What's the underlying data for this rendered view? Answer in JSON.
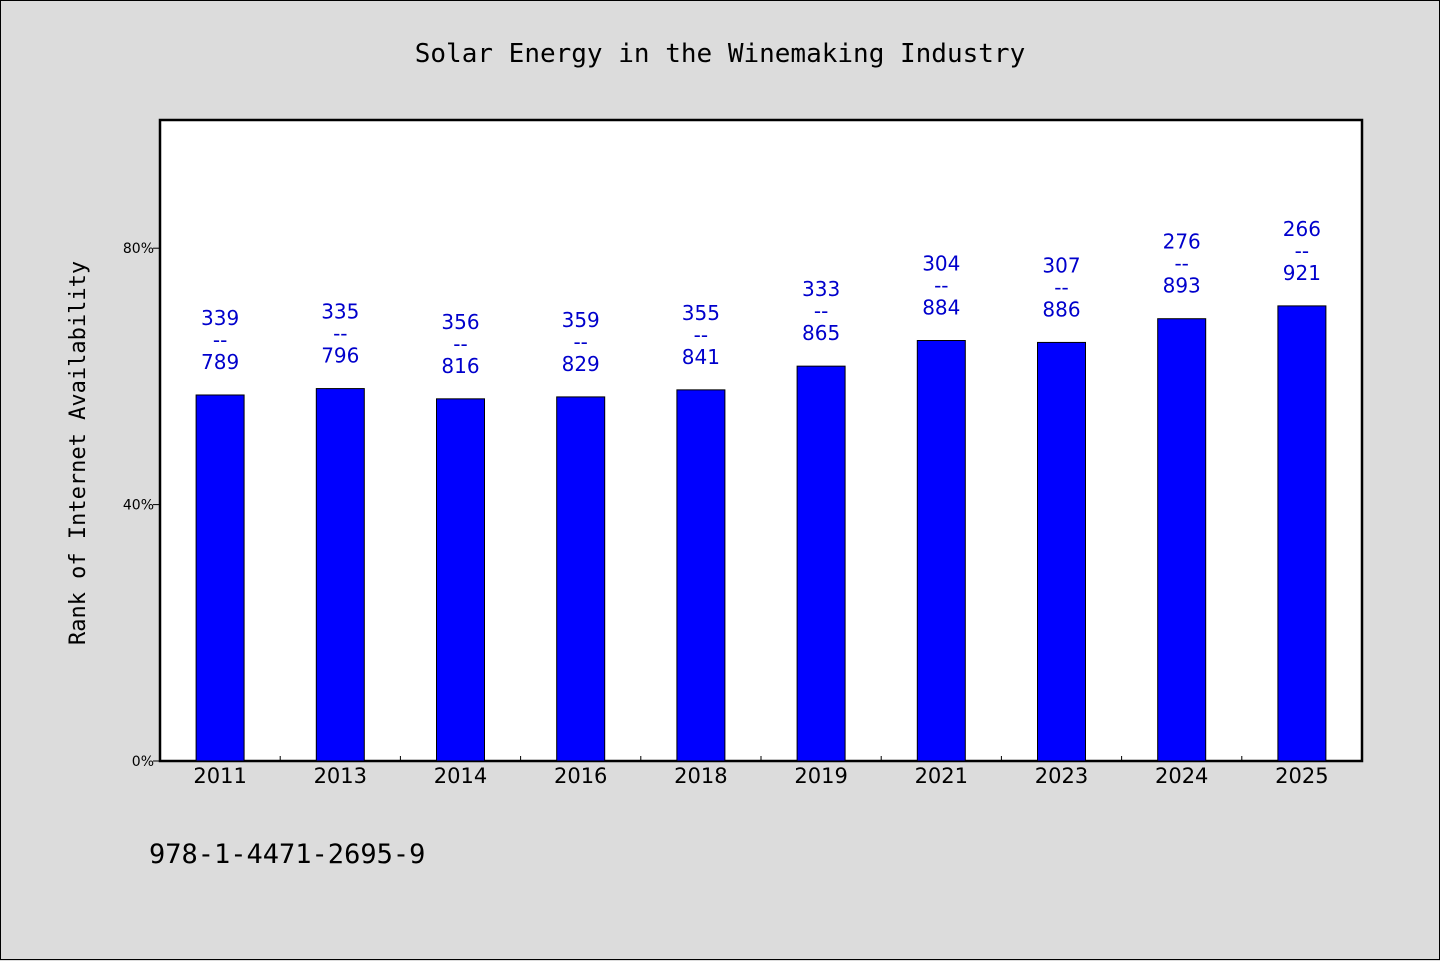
{
  "chart_data": {
    "type": "bar",
    "title": "Solar Energy in the Winemaking Industry",
    "ylabel": "Rank of Internet Availability",
    "xlabel": "",
    "ylim": [
      0,
      100
    ],
    "yticks": [
      0,
      40,
      80
    ],
    "ytick_labels": [
      "0%",
      "40%",
      "80%"
    ],
    "categories": [
      "2011",
      "2013",
      "2014",
      "2016",
      "2018",
      "2019",
      "2021",
      "2023",
      "2024",
      "2025"
    ],
    "values": [
      57.1,
      58.1,
      56.5,
      56.8,
      57.9,
      61.6,
      65.6,
      65.3,
      69.0,
      71.0
    ],
    "bar_labels": [
      [
        "339",
        "--",
        "789"
      ],
      [
        "335",
        "--",
        "796"
      ],
      [
        "356",
        "--",
        "816"
      ],
      [
        "359",
        "--",
        "829"
      ],
      [
        "355",
        "--",
        "841"
      ],
      [
        "333",
        "--",
        "865"
      ],
      [
        "304",
        "--",
        "884"
      ],
      [
        "307",
        "--",
        "886"
      ],
      [
        "276",
        "--",
        "893"
      ],
      [
        "266",
        "--",
        "921"
      ]
    ],
    "bar_color": "#0000ff",
    "label_color": "#0000cc",
    "grid": false,
    "legend": "none"
  },
  "footer": {
    "code": "978-1-4471-2695-9"
  }
}
